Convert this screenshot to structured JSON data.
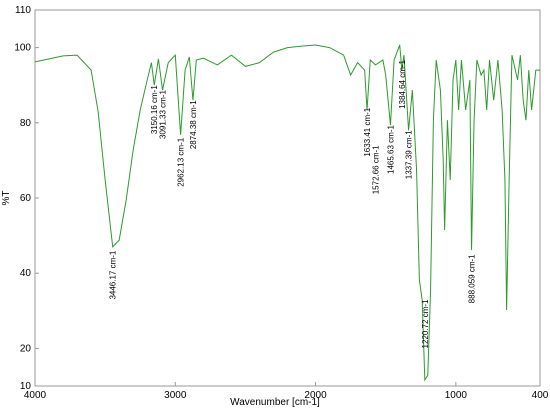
{
  "chart_data": {
    "type": "line",
    "xlabel": "Wavenumber [cm-1]",
    "ylabel": "%T",
    "xlim": [
      4000,
      400
    ],
    "ylim": [
      10,
      110
    ],
    "xticks": [
      4000,
      3000,
      2000,
      1000,
      400
    ],
    "yticks": [
      10,
      20,
      40,
      60,
      80,
      100,
      110
    ],
    "color": "#2e9a2e",
    "x": [
      4000,
      3800,
      3700,
      3600,
      3550,
      3500,
      3446,
      3400,
      3350,
      3300,
      3250,
      3200,
      3170,
      3150,
      3120,
      3091,
      3050,
      3000,
      2962,
      2930,
      2900,
      2874,
      2850,
      2800,
      2700,
      2600,
      2500,
      2400,
      2300,
      2200,
      2100,
      2000,
      1900,
      1800,
      1750,
      1700,
      1650,
      1633,
      1610,
      1573,
      1520,
      1500,
      1466,
      1440,
      1400,
      1385,
      1370,
      1337,
      1310,
      1280,
      1260,
      1240,
      1221,
      1200,
      1180,
      1160,
      1140,
      1110,
      1090,
      1080,
      1060,
      1040,
      1020,
      1000,
      980,
      960,
      930,
      900,
      888,
      870,
      850,
      820,
      800,
      780,
      760,
      730,
      700,
      670,
      650,
      638,
      620,
      600,
      560,
      540,
      520,
      500,
      480,
      460,
      430,
      400
    ],
    "values": [
      96.2,
      97.8,
      98,
      94,
      83,
      64.8,
      47,
      48.8,
      59.5,
      72.8,
      83.4,
      91.4,
      96,
      90,
      97,
      88.7,
      96,
      98,
      76.8,
      94,
      97.5,
      86,
      96.7,
      97.2,
      95.4,
      98,
      95,
      96,
      98.8,
      100,
      100.4,
      100.7,
      100,
      98,
      92.7,
      96,
      94,
      83.4,
      96.7,
      95.4,
      96.7,
      92.7,
      79.4,
      96.7,
      100.7,
      94,
      98,
      78,
      88.7,
      67.5,
      38.2,
      32.9,
      11.6,
      12.9,
      35.6,
      80.7,
      96.7,
      88.7,
      70,
      51.5,
      80.7,
      64.8,
      91.4,
      96.7,
      83.4,
      96.7,
      83.4,
      91.4,
      46.2,
      80.7,
      96.7,
      92.7,
      94,
      83.4,
      96.7,
      86,
      96.7,
      83.4,
      64.8,
      30.2,
      64.8,
      98,
      91.4,
      98,
      86,
      80.7,
      94,
      83.4,
      94,
      94
    ],
    "annotations": [
      {
        "text": "3446.17 cm-1",
        "x": 3446.17,
        "y": 46
      },
      {
        "text": "3150.16 cm-1",
        "x": 3150.16,
        "y": 90
      },
      {
        "text": "3091.33 cm-1",
        "x": 3091.33,
        "y": 88.7
      },
      {
        "text": "2962.13 cm-1",
        "x": 2962.13,
        "y": 76
      },
      {
        "text": "2874.38 cm-1",
        "x": 2874.38,
        "y": 86
      },
      {
        "text": "1633.41 cm-1",
        "x": 1633.41,
        "y": 84
      },
      {
        "text": "1572.66 cm-1",
        "x": 1572.66,
        "y": 74
      },
      {
        "text": "1465.63 cm-1",
        "x": 1465.63,
        "y": 79.4
      },
      {
        "text": "1384.64 cm-1",
        "x": 1384.64,
        "y": 96.7
      },
      {
        "text": "1337.39 cm-1",
        "x": 1337.39,
        "y": 78
      },
      {
        "text": "1220.72 cm-1",
        "x": 1220.72,
        "y": 33
      },
      {
        "text": "888.059 cm-1",
        "x": 888.059,
        "y": 45
      }
    ]
  }
}
